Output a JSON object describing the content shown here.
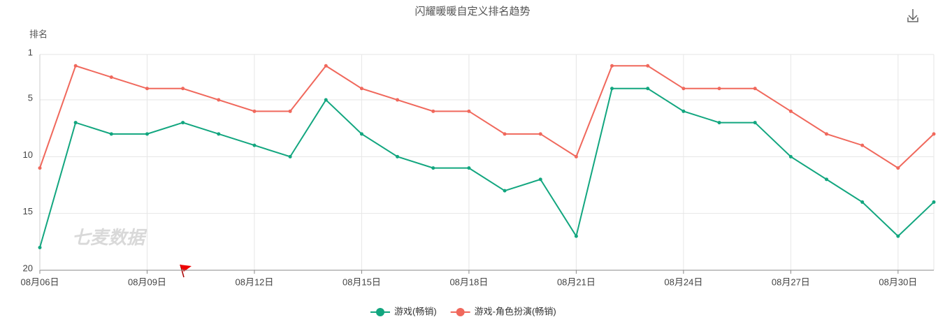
{
  "chart_data": {
    "type": "line",
    "title": "闪耀暖暖自定义排名趋势",
    "y_label": "排名",
    "watermark": "七麦数据",
    "categories": [
      "08月06日",
      null,
      null,
      "08月09日",
      null,
      null,
      "08月12日",
      null,
      null,
      "08月15日",
      null,
      null,
      "08月18日",
      null,
      null,
      "08月21日",
      null,
      null,
      "08月24日",
      null,
      null,
      "08月27日",
      null,
      null,
      "08月30日",
      null
    ],
    "series": [
      {
        "name": "游戏(畅销)",
        "color": "#12a67f",
        "values": [
          18,
          7,
          8,
          8,
          7,
          8,
          9,
          10,
          5,
          8,
          10,
          11,
          11,
          13,
          12,
          17,
          4,
          4,
          6,
          7,
          7,
          10,
          12,
          14,
          17,
          14
        ]
      },
      {
        "name": "游戏-角色扮演(畅销)",
        "color": "#f0685c",
        "values": [
          11,
          2,
          3,
          4,
          4,
          5,
          6,
          6,
          2,
          4,
          5,
          6,
          6,
          8,
          8,
          10,
          2,
          2,
          4,
          4,
          4,
          6,
          8,
          9,
          11,
          8
        ]
      }
    ],
    "ylim": [
      1,
      20
    ],
    "yticks": [
      1,
      5,
      10,
      15,
      20
    ],
    "y_inverted": true,
    "grid": true
  }
}
